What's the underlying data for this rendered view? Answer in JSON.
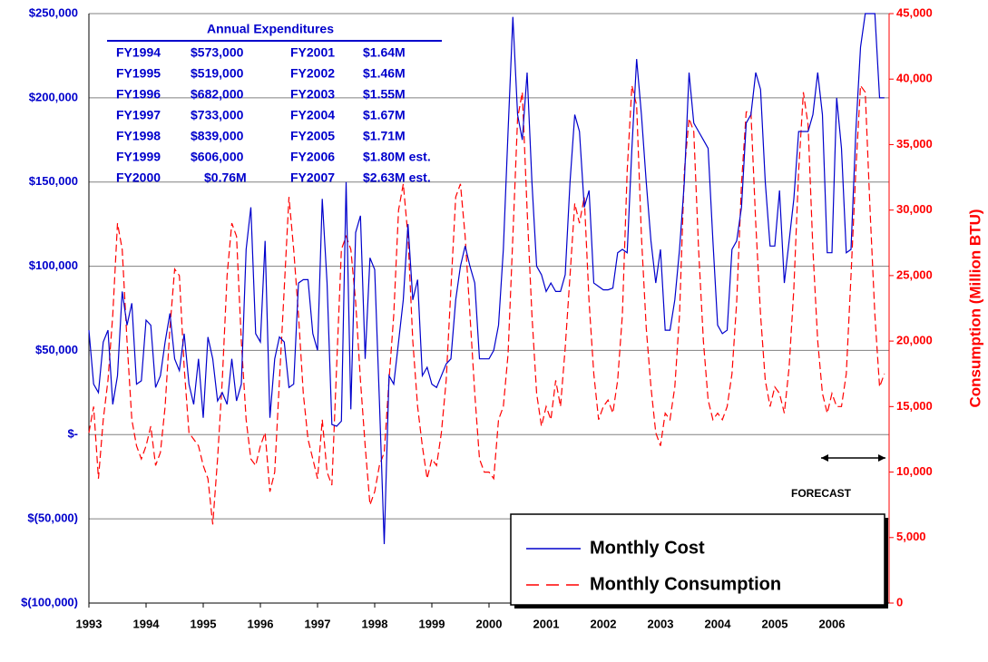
{
  "chart_data": {
    "type": "line",
    "x": [
      1993,
      1993.083,
      1993.167,
      1993.25,
      1993.333,
      1993.417,
      1993.5,
      1993.583,
      1993.667,
      1993.75,
      1993.833,
      1993.917,
      1994,
      1994.083,
      1994.167,
      1994.25,
      1994.333,
      1994.417,
      1994.5,
      1994.583,
      1994.667,
      1994.75,
      1994.833,
      1994.917,
      1995,
      1995.083,
      1995.167,
      1995.25,
      1995.333,
      1995.417,
      1995.5,
      1995.583,
      1995.667,
      1995.75,
      1995.833,
      1995.917,
      1996,
      1996.083,
      1996.167,
      1996.25,
      1996.333,
      1996.417,
      1996.5,
      1996.583,
      1996.667,
      1996.75,
      1996.833,
      1996.917,
      1997,
      1997.083,
      1997.167,
      1997.25,
      1997.333,
      1997.417,
      1997.5,
      1997.583,
      1997.667,
      1997.75,
      1997.833,
      1997.917,
      1998,
      1998.083,
      1998.167,
      1998.25,
      1998.333,
      1998.417,
      1998.5,
      1998.583,
      1998.667,
      1998.75,
      1998.833,
      1998.917,
      1999,
      1999.083,
      1999.167,
      1999.25,
      1999.333,
      1999.417,
      1999.5,
      1999.583,
      1999.667,
      1999.75,
      1999.833,
      1999.917,
      2000,
      2000.083,
      2000.167,
      2000.25,
      2000.333,
      2000.417,
      2000.5,
      2000.583,
      2000.667,
      2000.75,
      2000.833,
      2000.917,
      2001,
      2001.083,
      2001.167,
      2001.25,
      2001.333,
      2001.417,
      2001.5,
      2001.583,
      2001.667,
      2001.75,
      2001.833,
      2001.917,
      2002,
      2002.083,
      2002.167,
      2002.25,
      2002.333,
      2002.417,
      2002.5,
      2002.583,
      2002.667,
      2002.75,
      2002.833,
      2002.917,
      2003,
      2003.083,
      2003.167,
      2003.25,
      2003.333,
      2003.417,
      2003.5,
      2003.583,
      2003.667,
      2003.75,
      2003.833,
      2003.917,
      2004,
      2004.083,
      2004.167,
      2004.25,
      2004.333,
      2004.417,
      2004.5,
      2004.583,
      2004.667,
      2004.75,
      2004.833,
      2004.917,
      2005,
      2005.083,
      2005.167,
      2005.25,
      2005.333,
      2005.417,
      2005.5,
      2005.583,
      2005.667,
      2005.75,
      2005.833,
      2005.917,
      2006,
      2006.083,
      2006.167,
      2006.25,
      2006.333,
      2006.417,
      2006.5,
      2006.583,
      2006.667,
      2006.75,
      2006.833,
      2006.917
    ],
    "xlim": [
      1993,
      2007
    ],
    "xticks": [
      1993,
      1994,
      1995,
      1996,
      1997,
      1998,
      1999,
      2000,
      2001,
      2002,
      2003,
      2004,
      2005,
      2006
    ],
    "ylim": [
      -100000,
      250000
    ],
    "yticks": [
      {
        "value": -100000,
        "label": "$(100,000)"
      },
      {
        "value": -50000,
        "label": "$(50,000)"
      },
      {
        "value": 0,
        "label": "$-"
      },
      {
        "value": 50000,
        "label": "$50,000"
      },
      {
        "value": 100000,
        "label": "$100,000"
      },
      {
        "value": 150000,
        "label": "$150,000"
      },
      {
        "value": 200000,
        "label": "$200,000"
      },
      {
        "value": 250000,
        "label": "$250,000"
      }
    ],
    "y2lim": [
      0,
      45000
    ],
    "y2ticks": [
      0,
      {
        "value": 5000,
        "label": "5,000"
      },
      {
        "value": 10000,
        "label": "10,000"
      },
      {
        "value": 15000,
        "label": "15,000"
      },
      {
        "value": 20000,
        "label": "20,000"
      },
      {
        "value": 25000,
        "label": "25,000"
      },
      {
        "value": 30000,
        "label": "30,000"
      },
      {
        "value": 35000,
        "label": "35,000"
      },
      {
        "value": 40000,
        "label": "40,000"
      },
      {
        "value": 45000,
        "label": "45,000"
      }
    ],
    "y2label": "Consumption (Million BTU)",
    "grid": true,
    "series": [
      {
        "name": "Monthly Cost",
        "color": "#0000cc",
        "dash": false,
        "values": [
          62000,
          30000,
          25000,
          55000,
          62000,
          18000,
          35000,
          85000,
          65000,
          78000,
          30000,
          32000,
          68000,
          65000,
          28000,
          35000,
          55000,
          72000,
          45000,
          38000,
          60000,
          30000,
          18000,
          45000,
          10000,
          58000,
          45000,
          20000,
          25000,
          18000,
          45000,
          20000,
          30000,
          110000,
          135000,
          60000,
          55000,
          115000,
          10000,
          45000,
          58000,
          55000,
          28000,
          30000,
          90000,
          92000,
          92000,
          60000,
          50000,
          140000,
          90000,
          6000,
          5000,
          8000,
          150000,
          15000,
          120000,
          130000,
          45000,
          105000,
          98000,
          20000,
          -65000,
          35000,
          30000,
          55000,
          80000,
          125000,
          80000,
          92000,
          35000,
          40000,
          30000,
          28000,
          35000,
          42000,
          45000,
          80000,
          100000,
          112000,
          100000,
          90000,
          45000,
          45000,
          45000,
          50000,
          65000,
          110000,
          180000,
          248000,
          190000,
          175000,
          215000,
          150000,
          100000,
          95000,
          85000,
          90000,
          85000,
          85000,
          95000,
          150000,
          190000,
          180000,
          135000,
          145000,
          90000,
          88000,
          86000,
          86000,
          87000,
          108000,
          110000,
          108000,
          170000,
          223000,
          190000,
          150000,
          115000,
          90000,
          110000,
          62000,
          62000,
          80000,
          110000,
          150000,
          215000,
          185000,
          180000,
          175000,
          170000,
          115000,
          65000,
          60000,
          62000,
          110000,
          115000,
          135000,
          185000,
          190000,
          215000,
          205000,
          150000,
          112000,
          112000,
          145000,
          90000,
          115000,
          140000,
          180000,
          180000,
          180000,
          190000,
          215000,
          190000,
          108000,
          108000,
          200000,
          170000,
          108000,
          110000,
          180000,
          230000,
          250000,
          250000,
          250000,
          200000,
          200000
        ]
      },
      {
        "name": "Monthly Consumption",
        "color": "#ff0000",
        "dash": true,
        "axis": "y2",
        "values": [
          13000,
          15000,
          9500,
          14000,
          17000,
          22000,
          29000,
          27000,
          20000,
          14000,
          12000,
          11000,
          12000,
          13500,
          10500,
          11500,
          15000,
          21000,
          25500,
          25000,
          18000,
          13000,
          12500,
          12000,
          10500,
          9500,
          6000,
          11000,
          17000,
          25000,
          29000,
          28000,
          20000,
          14000,
          11000,
          10500,
          12000,
          13000,
          8500,
          10000,
          17000,
          24000,
          31000,
          27000,
          22000,
          16000,
          12500,
          11000,
          9500,
          14000,
          10000,
          9000,
          18000,
          27000,
          28000,
          27000,
          23000,
          17000,
          12000,
          7500,
          8500,
          10500,
          11500,
          17000,
          22000,
          30000,
          32000,
          28000,
          20000,
          15000,
          12000,
          9500,
          11000,
          10500,
          13000,
          17000,
          24000,
          31000,
          32000,
          28000,
          22000,
          16000,
          11000,
          10000,
          10000,
          9500,
          14000,
          15000,
          19000,
          28000,
          37000,
          39000,
          30000,
          22000,
          16000,
          13500,
          15000,
          14000,
          17000,
          15000,
          19500,
          25000,
          30500,
          29000,
          31000,
          23000,
          17500,
          14000,
          15000,
          15500,
          14500,
          17000,
          22000,
          33000,
          39500,
          38000,
          28000,
          21000,
          16500,
          13000,
          12000,
          14500,
          14000,
          16500,
          22000,
          33000,
          37000,
          36000,
          27000,
          20000,
          15500,
          14000,
          14500,
          14000,
          15000,
          17500,
          23000,
          32000,
          37500,
          37500,
          29000,
          22000,
          17000,
          15000,
          16500,
          16000,
          14500,
          18000,
          24000,
          33000,
          39000,
          36500,
          27000,
          20000,
          16000,
          14500,
          16000,
          15000,
          15000,
          17500,
          25000,
          33000,
          39500,
          39000,
          30000,
          22000,
          16500,
          17500
        ]
      }
    ],
    "annotation": "FORECAST",
    "annual_expenditures": {
      "title": "Annual Expenditures",
      "rows": [
        [
          "FY1994",
          "$573,000",
          "FY2001",
          "$1.64M"
        ],
        [
          "FY1995",
          "$519,000",
          "FY2002",
          "$1.46M"
        ],
        [
          "FY1996",
          "$682,000",
          "FY2003",
          "$1.55M"
        ],
        [
          "FY1997",
          "$733,000",
          "FY2004",
          "$1.67M"
        ],
        [
          "FY1998",
          "$839,000",
          "FY2005",
          "$1.71M"
        ],
        [
          "FY1999",
          "$606,000",
          "FY2006",
          "$1.80M est."
        ],
        [
          "FY2000",
          "$0.76M",
          "FY2007",
          "$2.63M est."
        ]
      ]
    }
  }
}
